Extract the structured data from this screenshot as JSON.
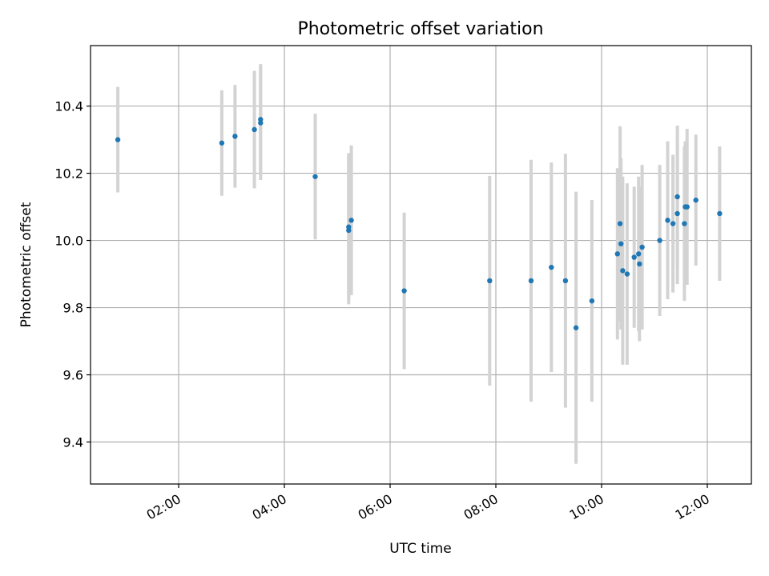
{
  "chart_data": {
    "type": "scatter",
    "title": "Photometric offset variation",
    "xlabel": "UTC time",
    "ylabel": "Photometric offset",
    "x_is_time": true,
    "xlim": [
      "00:20",
      "12:50"
    ],
    "ylim": [
      9.275,
      10.58
    ],
    "xticks": [
      "02:00",
      "04:00",
      "06:00",
      "08:00",
      "10:00",
      "12:00"
    ],
    "yticks": [
      9.4,
      9.6,
      9.8,
      10.0,
      10.2,
      10.4
    ],
    "ytick_labels": [
      "9.4",
      "9.6",
      "9.8",
      "10.0",
      "10.2",
      "10.4"
    ],
    "grid": true,
    "point_color": "#1f77b4",
    "errorbar_color": "#d3d3d3",
    "points": [
      {
        "x": "00:51",
        "y": 10.3,
        "err": 0.157
      },
      {
        "x": "02:49",
        "y": 10.29,
        "err": 0.157
      },
      {
        "x": "03:04",
        "y": 10.31,
        "err": 0.153
      },
      {
        "x": "03:26",
        "y": 10.33,
        "err": 0.175
      },
      {
        "x": "03:33",
        "y": 10.36,
        "err": 0.165
      },
      {
        "x": "03:33",
        "y": 10.35,
        "err": 0.17
      },
      {
        "x": "04:35",
        "y": 10.19,
        "err": 0.187
      },
      {
        "x": "05:13",
        "y": 10.04,
        "err": 0.22
      },
      {
        "x": "05:13",
        "y": 10.03,
        "err": 0.22
      },
      {
        "x": "05:16",
        "y": 10.06,
        "err": 0.223
      },
      {
        "x": "06:16",
        "y": 9.85,
        "err": 0.233
      },
      {
        "x": "07:53",
        "y": 9.88,
        "err": 0.312
      },
      {
        "x": "08:40",
        "y": 9.88,
        "err": 0.36
      },
      {
        "x": "09:03",
        "y": 9.92,
        "err": 0.312
      },
      {
        "x": "09:19",
        "y": 9.88,
        "err": 0.378
      },
      {
        "x": "09:31",
        "y": 9.74,
        "err": 0.405
      },
      {
        "x": "09:49",
        "y": 9.82,
        "err": 0.3
      },
      {
        "x": "10:18",
        "y": 9.96,
        "err": 0.255
      },
      {
        "x": "10:21",
        "y": 10.05,
        "err": 0.29
      },
      {
        "x": "10:22",
        "y": 9.99,
        "err": 0.255
      },
      {
        "x": "10:24",
        "y": 9.91,
        "err": 0.28
      },
      {
        "x": "10:29",
        "y": 9.9,
        "err": 0.27
      },
      {
        "x": "10:37",
        "y": 9.95,
        "err": 0.21
      },
      {
        "x": "10:42",
        "y": 9.96,
        "err": 0.23
      },
      {
        "x": "10:43",
        "y": 9.93,
        "err": 0.23
      },
      {
        "x": "10:46",
        "y": 9.98,
        "err": 0.245
      },
      {
        "x": "11:06",
        "y": 10.0,
        "err": 0.225
      },
      {
        "x": "11:15",
        "y": 10.06,
        "err": 0.235
      },
      {
        "x": "11:21",
        "y": 10.05,
        "err": 0.205
      },
      {
        "x": "11:26",
        "y": 10.08,
        "err": 0.21
      },
      {
        "x": "11:26",
        "y": 10.13,
        "err": 0.212
      },
      {
        "x": "11:34",
        "y": 10.05,
        "err": 0.23
      },
      {
        "x": "11:35",
        "y": 10.1,
        "err": 0.195
      },
      {
        "x": "11:37",
        "y": 10.1,
        "err": 0.232
      },
      {
        "x": "11:47",
        "y": 10.12,
        "err": 0.195
      },
      {
        "x": "12:14",
        "y": 10.08,
        "err": 0.2
      }
    ]
  }
}
